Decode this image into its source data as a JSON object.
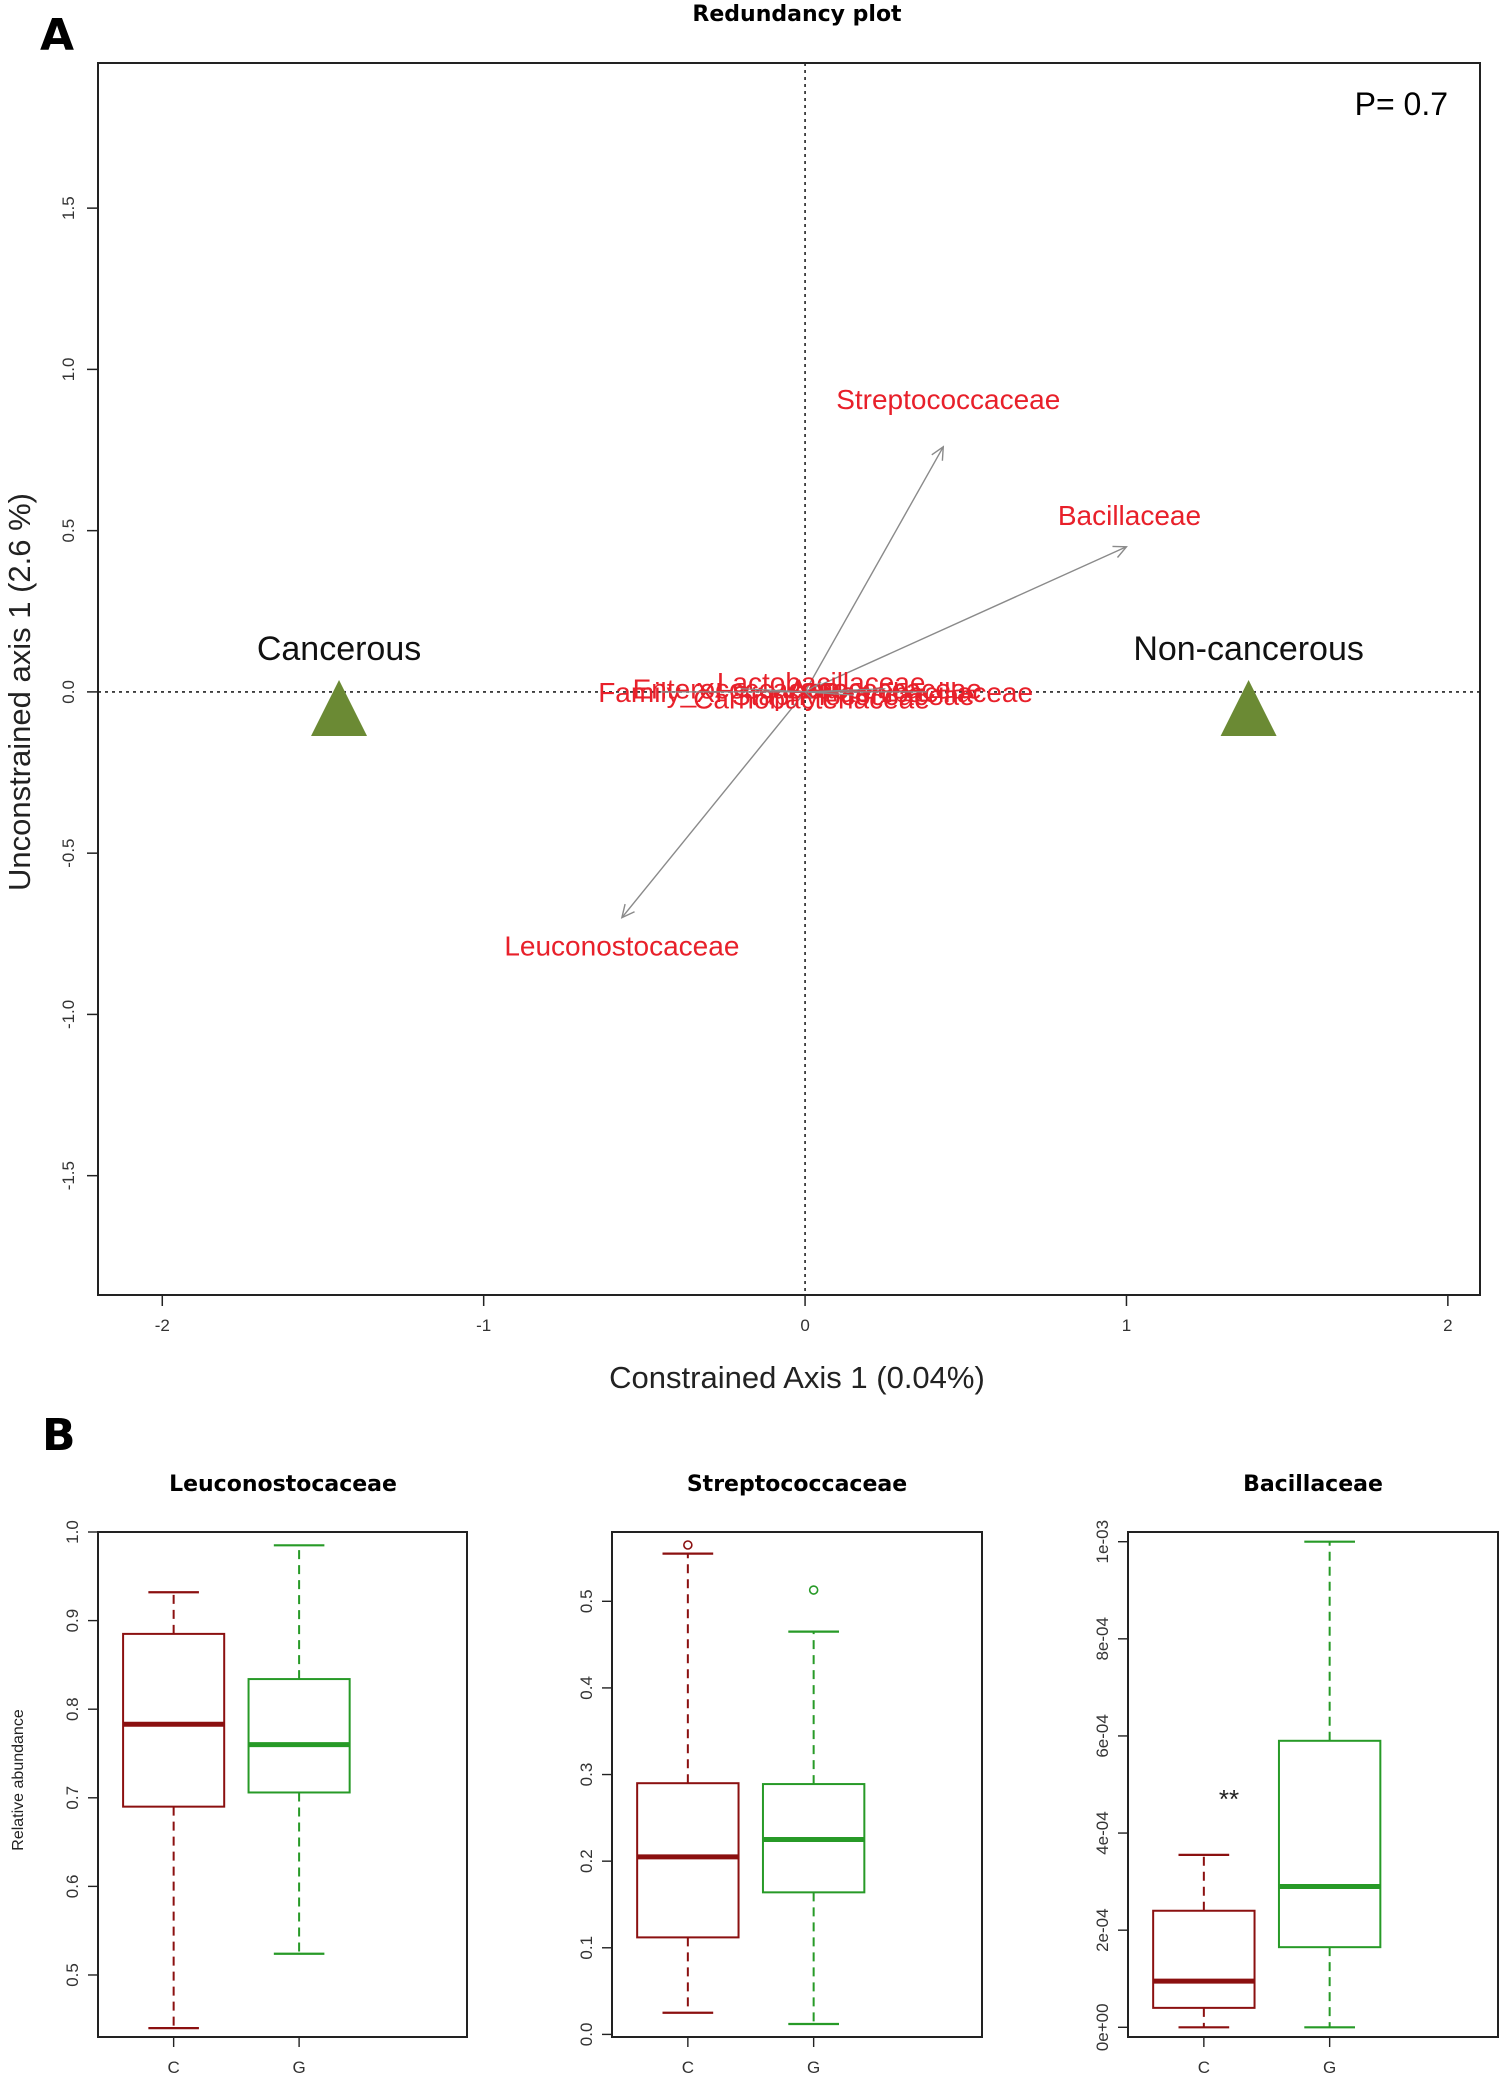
{
  "panel_a_letter": "A",
  "panel_b_letter": "B",
  "chart_data": [
    {
      "type": "scatter",
      "title": "Redundancy plot",
      "xlabel": "Constrained Axis 1  (0.04%)",
      "ylabel": "Unconstrained axis 1 (2.6 %)",
      "xlim": [
        -2.2,
        2.1
      ],
      "ylim": [
        -1.87,
        1.95
      ],
      "xticks": [
        "-2",
        "-1",
        "0",
        "1",
        "2"
      ],
      "yticks": [
        "-1.5",
        "-1.0",
        "-0.5",
        "0.0",
        "0.5",
        "1.0",
        "1.5"
      ],
      "annotation": "P= 0.7",
      "groups": [
        {
          "name": "Cancerous",
          "x": -1.45,
          "y": -0.05
        },
        {
          "name": "Non-cancerous",
          "x": 1.38,
          "y": -0.05
        }
      ],
      "arrows": [
        {
          "name": "Streptococcaceae",
          "x": 0.43,
          "y": 0.76
        },
        {
          "name": "Bacillaceae",
          "x": 1.0,
          "y": 0.45
        },
        {
          "name": "Leuconostocaceae",
          "x": -0.57,
          "y": -0.7
        }
      ],
      "overlapping_labels": [
        {
          "name": "Lactobacillaceae",
          "x": 0.05,
          "y": 0.03
        },
        {
          "name": "Enterococcaceae",
          "x": -0.2,
          "y": 0.01
        },
        {
          "name": "Carnobacteriaceae",
          "x": 0.02,
          "y": -0.02
        },
        {
          "name": "Staphylococcaceae",
          "x": 0.15,
          "y": -0.01
        },
        {
          "name": "Paenibacillaceae",
          "x": 0.38,
          "y": 0.0
        },
        {
          "name": "Family_XI",
          "x": -0.45,
          "y": 0.0
        },
        {
          "name": "Aerococcaceae",
          "x": 0.25,
          "y": 0.01
        }
      ]
    },
    {
      "type": "box",
      "title": "Leuconostocaceae",
      "ylabel": "Relative abundance",
      "categories": [
        "C",
        "G"
      ],
      "ylim": [
        0.43,
        1.0
      ],
      "yticks": [
        "0.5",
        "0.6",
        "0.7",
        "0.8",
        "0.9",
        "1.0"
      ],
      "boxes": [
        {
          "name": "C",
          "min": 0.44,
          "q1": 0.69,
          "median": 0.783,
          "q3": 0.885,
          "max": 0.932,
          "outliers": []
        },
        {
          "name": "G",
          "min": 0.524,
          "q1": 0.706,
          "median": 0.76,
          "q3": 0.834,
          "max": 0.985,
          "outliers": []
        }
      ]
    },
    {
      "type": "box",
      "title": "Streptococcaceae",
      "ylabel": "",
      "categories": [
        "C",
        "G"
      ],
      "ylim": [
        -0.003,
        0.58
      ],
      "yticks": [
        "0.0",
        "0.1",
        "0.2",
        "0.3",
        "0.4",
        "0.5"
      ],
      "boxes": [
        {
          "name": "C",
          "min": 0.025,
          "q1": 0.112,
          "median": 0.205,
          "q3": 0.29,
          "max": 0.555,
          "outliers": [
            0.565
          ]
        },
        {
          "name": "G",
          "min": 0.012,
          "q1": 0.164,
          "median": 0.225,
          "q3": 0.289,
          "max": 0.465,
          "outliers": [
            0.513
          ]
        }
      ]
    },
    {
      "type": "box",
      "title": "Bacillaceae",
      "ylabel": "",
      "categories": [
        "C",
        "G"
      ],
      "ylim": [
        -2e-05,
        0.00102
      ],
      "yticks": [
        "0e+00",
        "2e-04",
        "4e-04",
        "6e-04",
        "8e-04",
        "1e-03"
      ],
      "annotation": "**",
      "boxes": [
        {
          "name": "C",
          "min": 0.0,
          "q1": 4e-05,
          "median": 9.5e-05,
          "q3": 0.00024,
          "max": 0.000355,
          "outliers": []
        },
        {
          "name": "G",
          "min": 0.0,
          "q1": 0.000165,
          "median": 0.00029,
          "q3": 0.00059,
          "max": 0.001,
          "outliers": []
        }
      ]
    }
  ],
  "colors": {
    "group_marker": "#6b8a34",
    "taxon_label": "#e8202a",
    "arrow": "#8a8a8a",
    "box_c": "#8b1010",
    "box_g": "#279a27"
  }
}
